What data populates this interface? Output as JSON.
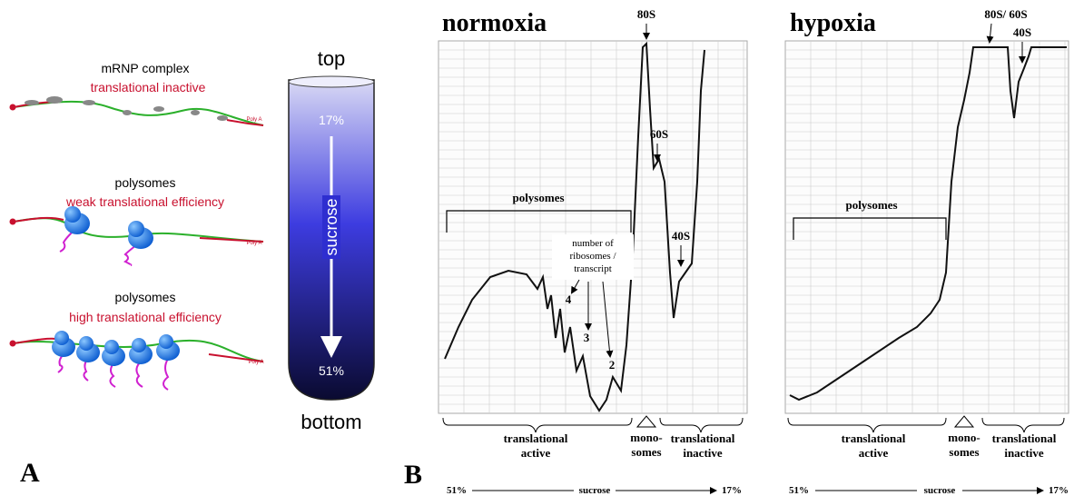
{
  "panel_a": {
    "label": "A",
    "mrnp": {
      "title": "mRNP complex",
      "subtitle": "translational inactive",
      "polya": "Poly A"
    },
    "weak": {
      "title": "polysomes",
      "subtitle": "weak translational efficiency",
      "polya": "Poly A"
    },
    "high": {
      "title": "polysomes",
      "subtitle": "high translational efficiency",
      "polya": "Poly A"
    },
    "tube": {
      "top": "top",
      "top_pct": "17%",
      "axis": "sucrose",
      "bottom_pct": "51%",
      "bottom": "bottom"
    }
  },
  "panel_b": {
    "label": "B",
    "normoxia": {
      "title": "normoxia",
      "peak_80s": "80S",
      "peak_60s": "60S",
      "peak_40s": "40S",
      "polysomes": "polysomes",
      "ribosome_note": [
        "number of",
        "ribosomes /",
        "transcript"
      ],
      "n4": "4",
      "n3": "3",
      "n2": "2",
      "active": [
        "translational",
        "active"
      ],
      "mono": [
        "mono-",
        "somes"
      ],
      "inactive": [
        "translational",
        "inactive"
      ],
      "axis_left": "51%",
      "axis_mid": "sucrose",
      "axis_right": "17%"
    },
    "hypoxia": {
      "title": "hypoxia",
      "peak_80s_60s": "80S/ 60S",
      "peak_40s": "40S",
      "polysomes": "polysomes",
      "active": [
        "translational",
        "active"
      ],
      "mono": [
        "mono-",
        "somes"
      ],
      "inactive": [
        "translational",
        "inactive"
      ],
      "axis_left": "51%",
      "axis_mid": "sucrose",
      "axis_right": "17%"
    }
  }
}
